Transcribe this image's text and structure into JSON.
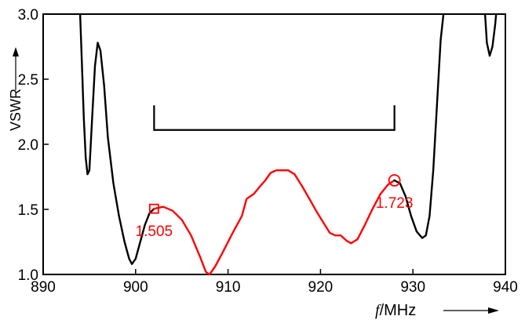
{
  "chart_data": {
    "type": "line",
    "ylabel": "VSWR",
    "xlabel": "f/MHz",
    "xlabel_italic": "f",
    "xlabel_unit": "/MHz",
    "xlim": [
      890,
      940
    ],
    "ylim": [
      1.0,
      3.0
    ],
    "x_ticks": [
      "890",
      "900",
      "910",
      "920",
      "930",
      "940"
    ],
    "y_ticks": [
      "1.0",
      "1.5",
      "2.0",
      "2.5",
      "3.0"
    ],
    "grid": false,
    "bracket": {
      "x_start": 902,
      "x_end": 928,
      "y_top": 2.3,
      "y_bottom": 2.11
    },
    "series": [
      {
        "color": "#000000",
        "points": [
          [
            894.0,
            3.0
          ],
          [
            894.15,
            2.7
          ],
          [
            894.4,
            2.2
          ],
          [
            894.6,
            1.9
          ],
          [
            894.8,
            1.77
          ],
          [
            895.0,
            1.8
          ],
          [
            895.3,
            2.2
          ],
          [
            895.6,
            2.6
          ],
          [
            895.9,
            2.78
          ],
          [
            896.2,
            2.72
          ],
          [
            896.6,
            2.45
          ],
          [
            897.0,
            2.05
          ],
          [
            897.6,
            1.7
          ],
          [
            898.2,
            1.45
          ],
          [
            898.8,
            1.25
          ],
          [
            899.3,
            1.12
          ],
          [
            899.6,
            1.08
          ],
          [
            900.0,
            1.12
          ],
          [
            900.5,
            1.25
          ],
          [
            901.0,
            1.38
          ],
          [
            901.5,
            1.47
          ],
          [
            902.0,
            1.505
          ]
        ]
      },
      {
        "color": "#ff0000",
        "points": [
          [
            902.0,
            1.505
          ],
          [
            903.0,
            1.52
          ],
          [
            904.0,
            1.49
          ],
          [
            905.0,
            1.42
          ],
          [
            906.0,
            1.3
          ],
          [
            907.0,
            1.13
          ],
          [
            907.6,
            1.02
          ],
          [
            908.0,
            1.0
          ],
          [
            908.6,
            1.06
          ],
          [
            909.5,
            1.18
          ],
          [
            910.5,
            1.32
          ],
          [
            911.5,
            1.45
          ],
          [
            912.0,
            1.58
          ],
          [
            912.8,
            1.62
          ],
          [
            913.5,
            1.68
          ],
          [
            914.0,
            1.72
          ],
          [
            914.6,
            1.78
          ],
          [
            915.2,
            1.8
          ],
          [
            916.5,
            1.8
          ],
          [
            917.2,
            1.77
          ],
          [
            918.0,
            1.68
          ],
          [
            918.8,
            1.58
          ],
          [
            919.6,
            1.48
          ],
          [
            920.3,
            1.4
          ],
          [
            921.0,
            1.32
          ],
          [
            921.6,
            1.3
          ],
          [
            922.2,
            1.3
          ],
          [
            922.8,
            1.26
          ],
          [
            923.3,
            1.24
          ],
          [
            924.0,
            1.27
          ],
          [
            924.8,
            1.38
          ],
          [
            925.6,
            1.5
          ],
          [
            926.5,
            1.62
          ],
          [
            927.3,
            1.69
          ],
          [
            928.0,
            1.723
          ]
        ]
      },
      {
        "color": "#000000",
        "points": [
          [
            928.0,
            1.723
          ],
          [
            928.6,
            1.7
          ],
          [
            929.2,
            1.6
          ],
          [
            929.8,
            1.45
          ],
          [
            930.4,
            1.33
          ],
          [
            931.0,
            1.28
          ],
          [
            931.4,
            1.3
          ],
          [
            931.8,
            1.45
          ],
          [
            932.2,
            1.8
          ],
          [
            932.6,
            2.3
          ],
          [
            933.0,
            2.8
          ],
          [
            933.3,
            3.0
          ]
        ]
      },
      {
        "color": "#000000",
        "points": [
          [
            937.8,
            3.0
          ],
          [
            938.0,
            2.78
          ],
          [
            938.3,
            2.68
          ],
          [
            938.6,
            2.75
          ],
          [
            938.9,
            2.92
          ],
          [
            939.0,
            3.0
          ]
        ]
      }
    ],
    "annotations": [
      {
        "x": 902,
        "y": 1.505,
        "label": "1.505",
        "marker": "square",
        "color": "#ff0000"
      },
      {
        "x": 928,
        "y": 1.723,
        "label": "1.723",
        "marker": "circle",
        "color": "#ff0000"
      }
    ]
  }
}
